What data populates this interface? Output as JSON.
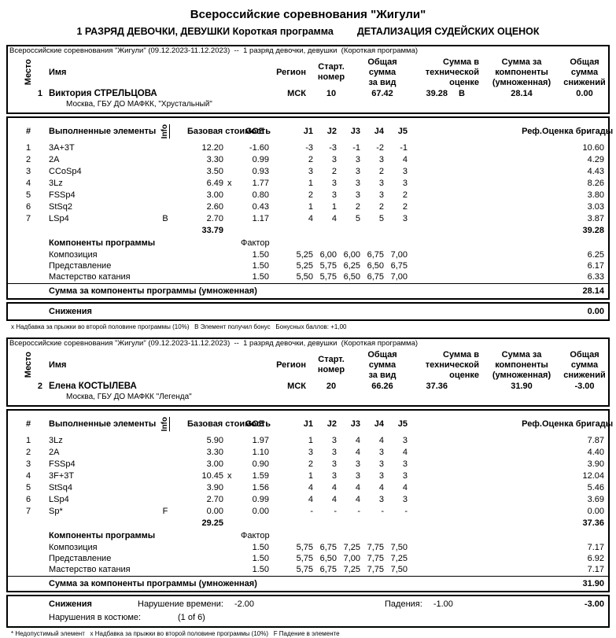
{
  "page": {
    "title": "Всероссийские соревнования \"Жигули\"",
    "subtitle_program": "1 РАЗРЯД ДЕВОЧКИ, ДЕВУШКИ Короткая программа",
    "subtitle_detail": "ДЕТАЛИЗАЦИЯ СУДЕЙСКИХ ОЦЕНОК"
  },
  "labels": {
    "caption": "Всероссийские соревнования \"Жигули\" (09.12.2023-11.12.2023)  --  1 разряд девочки, девушки  (Короткая программа)",
    "place": "Место",
    "name": "Имя",
    "region": "Регион",
    "start_number": "Старт.\nномер",
    "total_segment": "Общая\nсумма\nза вид",
    "tech_sum": "Сумма в\nтехнической\nоценке",
    "components_sum": "Сумма за\nкомпоненты\n(умноженная)",
    "deductions_sum": "Общая\nсумма\nснижений",
    "hash": "#",
    "executed_elements": "Выполненные\nэлементы",
    "info": "Info",
    "base_value": "Базовая\nстоимость",
    "goe": "GOE",
    "judges": [
      "J1",
      "J2",
      "J3",
      "J4",
      "J5"
    ],
    "ref": "Реф.",
    "panel_score": "Оценка\nбригады",
    "components_title": "Компоненты программы",
    "factor": "Фактор",
    "comp_sum_row": "Сумма за компоненты программы (умноженная)",
    "deductions": "Снижения",
    "time_violation": "Нарушение времени:",
    "falls": "Падения:",
    "costume_violation": "Нарушения в костюме:"
  },
  "skaters": [
    {
      "place": "1",
      "name": "Виктория СТРЕЛЬЦОВА",
      "club": "Москва, ГБУ ДО МАФКК, \"Хрустальный\"",
      "region": "МСК",
      "start_number": "10",
      "total_score": "67.42",
      "tech_score": "39.28",
      "tech_bonus": "В",
      "components_score": "28.14",
      "deductions_score": "0.00",
      "elements": [
        {
          "num": "1",
          "name": "3A+3T",
          "base": "12.20",
          "goe": "-1.60",
          "j": [
            "-3",
            "-3",
            "-1",
            "-2",
            "-1"
          ],
          "score": "10.60"
        },
        {
          "num": "2",
          "name": "2A",
          "base": "3.30",
          "goe": "0.99",
          "j": [
            "2",
            "3",
            "3",
            "3",
            "4"
          ],
          "score": "4.29"
        },
        {
          "num": "3",
          "name": "CCoSp4",
          "base": "3.50",
          "goe": "0.93",
          "j": [
            "3",
            "2",
            "3",
            "2",
            "3"
          ],
          "score": "4.43"
        },
        {
          "num": "4",
          "name": "3Lz",
          "base": "6.49",
          "x": "x",
          "goe": "1.77",
          "j": [
            "1",
            "3",
            "3",
            "3",
            "3"
          ],
          "score": "8.26"
        },
        {
          "num": "5",
          "name": "FSSp4",
          "base": "3.00",
          "goe": "0.80",
          "j": [
            "2",
            "3",
            "3",
            "3",
            "2"
          ],
          "score": "3.80"
        },
        {
          "num": "6",
          "name": "StSq2",
          "base": "2.60",
          "goe": "0.43",
          "j": [
            "1",
            "1",
            "2",
            "2",
            "2"
          ],
          "score": "3.03"
        },
        {
          "num": "7",
          "name": "LSp4",
          "info": "В",
          "base": "2.70",
          "goe": "1.17",
          "j": [
            "4",
            "4",
            "5",
            "5",
            "3"
          ],
          "score": "3.87"
        }
      ],
      "base_total": "33.79",
      "elements_total": "39.28",
      "components": [
        {
          "name": "Композиция",
          "factor": "1.50",
          "j": [
            "5,25",
            "6,00",
            "6,00",
            "6,75",
            "7,00"
          ],
          "score": "6.25"
        },
        {
          "name": "Представление",
          "factor": "1.50",
          "j": [
            "5,25",
            "5,75",
            "6,25",
            "6,50",
            "6,75"
          ],
          "score": "6.17"
        },
        {
          "name": "Мастерство катания",
          "factor": "1.50",
          "j": [
            "5,50",
            "5,75",
            "6,50",
            "6,75",
            "7,00"
          ],
          "score": "6.33"
        }
      ],
      "components_total": "28.14",
      "deductions": {
        "total": "0.00"
      },
      "footnote": "х Надбавка за прыжки во второй половине программы (10%)   В Элемент получил бонус   Бонусных баллов: +1,00"
    },
    {
      "place": "2",
      "name": "Елена КОСТЫЛЕВА",
      "club": "Москва, ГБУ ДО МАФКК \"Легенда\"",
      "region": "МСК",
      "start_number": "20",
      "total_score": "66.26",
      "tech_score": "37.36",
      "components_score": "31.90",
      "deductions_score": "-3.00",
      "elements": [
        {
          "num": "1",
          "name": "3Lz",
          "base": "5.90",
          "goe": "1.97",
          "j": [
            "1",
            "3",
            "4",
            "4",
            "3"
          ],
          "score": "7.87"
        },
        {
          "num": "2",
          "name": "2A",
          "base": "3.30",
          "goe": "1.10",
          "j": [
            "3",
            "3",
            "4",
            "3",
            "4"
          ],
          "score": "4.40"
        },
        {
          "num": "3",
          "name": "FSSp4",
          "base": "3.00",
          "goe": "0.90",
          "j": [
            "2",
            "3",
            "3",
            "3",
            "3"
          ],
          "score": "3.90"
        },
        {
          "num": "4",
          "name": "3F+3T",
          "base": "10.45",
          "x": "x",
          "goe": "1.59",
          "j": [
            "1",
            "3",
            "3",
            "3",
            "3"
          ],
          "score": "12.04"
        },
        {
          "num": "5",
          "name": "StSq4",
          "base": "3.90",
          "goe": "1.56",
          "j": [
            "4",
            "4",
            "4",
            "4",
            "4"
          ],
          "score": "5.46"
        },
        {
          "num": "6",
          "name": "LSp4",
          "base": "2.70",
          "goe": "0.99",
          "j": [
            "4",
            "4",
            "4",
            "3",
            "3"
          ],
          "score": "3.69"
        },
        {
          "num": "7",
          "name": "Sp*",
          "info": "F",
          "base": "0.00",
          "goe": "0.00",
          "j": [
            "-",
            "-",
            "-",
            "-",
            "-"
          ],
          "score": "0.00"
        }
      ],
      "base_total": "29.25",
      "elements_total": "37.36",
      "components": [
        {
          "name": "Композиция",
          "factor": "1.50",
          "j": [
            "5,75",
            "6,75",
            "7,25",
            "7,75",
            "7,50"
          ],
          "score": "7.17"
        },
        {
          "name": "Представление",
          "factor": "1.50",
          "j": [
            "5,75",
            "6,50",
            "7,00",
            "7,75",
            "7,25"
          ],
          "score": "6.92"
        },
        {
          "name": "Мастерство катания",
          "factor": "1.50",
          "j": [
            "5,75",
            "6,75",
            "7,25",
            "7,75",
            "7,50"
          ],
          "score": "7.17"
        }
      ],
      "components_total": "31.90",
      "deductions": {
        "time_value": "-2.00",
        "falls_value": "-1.00",
        "costume_value": "(1 of 6)",
        "total": "-3.00"
      },
      "footnote": "* Недопустимый элемент   х Надбавка за прыжки во второй половине программы (10%)   F Падение в элементе"
    }
  ]
}
